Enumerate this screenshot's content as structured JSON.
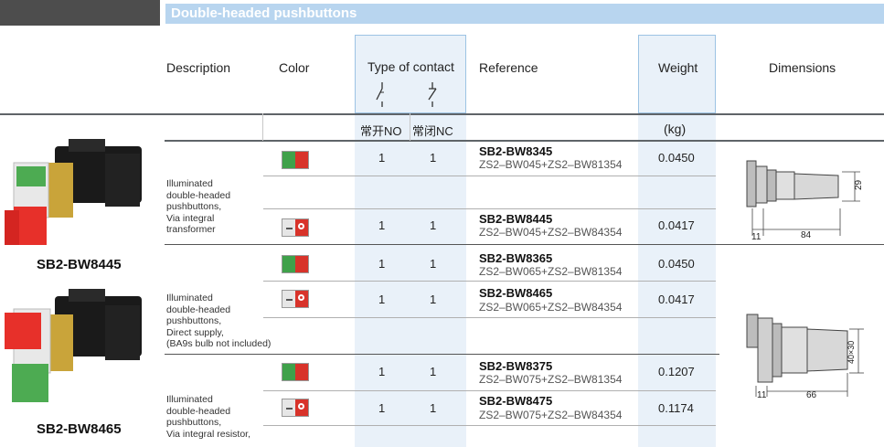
{
  "section_title": "Double-headed pushbuttons",
  "headers": {
    "description": "Description",
    "color": "Color",
    "type_of_contact": "Type of contact",
    "reference": "Reference",
    "weight": "Weight",
    "dimensions": "Dimensions",
    "contact_no": "常开NO",
    "contact_nc": "常闭NC",
    "weight_unit": "(kg)"
  },
  "products": [
    {
      "label": "SB2-BW8445"
    },
    {
      "label": "SB2-BW8465"
    }
  ],
  "groups": [
    {
      "description": [
        "Illuminated",
        "double-headed",
        "pushbuttons,",
        "Via integral",
        "transformer"
      ]
    },
    {
      "description": [
        "Illuminated",
        "double-headed",
        "pushbuttons,",
        "Direct supply,",
        "(BA9s bulb not included)"
      ]
    },
    {
      "description": [
        "Illuminated",
        "double-headed",
        "pushbuttons,",
        "Via integral resistor,"
      ]
    }
  ],
  "rows": [
    {
      "color_icon": "green-red-swatch",
      "no": "1",
      "nc": "1",
      "ref": "SB2-BW8345",
      "ref_sub": "ZS2–BW045+ZS2–BW81354",
      "weight": "0.0450"
    },
    {
      "color_icon": "white-red-swatch",
      "no": "1",
      "nc": "1",
      "ref": "SB2-BW8445",
      "ref_sub": "ZS2–BW045+ZS2–BW84354",
      "weight": "0.0417"
    },
    {
      "color_icon": "green-red-swatch",
      "no": "1",
      "nc": "1",
      "ref": "SB2-BW8365",
      "ref_sub": "ZS2–BW065+ZS2–BW81354",
      "weight": "0.0450"
    },
    {
      "color_icon": "white-red-swatch",
      "no": "1",
      "nc": "1",
      "ref": "SB2-BW8465",
      "ref_sub": "ZS2–BW065+ZS2–BW84354",
      "weight": "0.0417"
    },
    {
      "color_icon": "green-red-swatch",
      "no": "1",
      "nc": "1",
      "ref": "SB2-BW8375",
      "ref_sub": "ZS2–BW075+ZS2–BW81354",
      "weight": "0.1207"
    },
    {
      "color_icon": "white-red-swatch",
      "no": "1",
      "nc": "1",
      "ref": "SB2-BW8475",
      "ref_sub": "ZS2–BW075+ZS2–BW84354",
      "weight": "0.1174"
    }
  ],
  "dimensions": [
    {
      "height": "29",
      "left": "11",
      "length": "84"
    },
    {
      "height": "40×30",
      "left": "11",
      "length": "66"
    }
  ],
  "colors": {
    "accent": "#b8d5ef",
    "column_bg": "#e9f1f9",
    "green": "#3fa14a",
    "red": "#d8332a"
  }
}
